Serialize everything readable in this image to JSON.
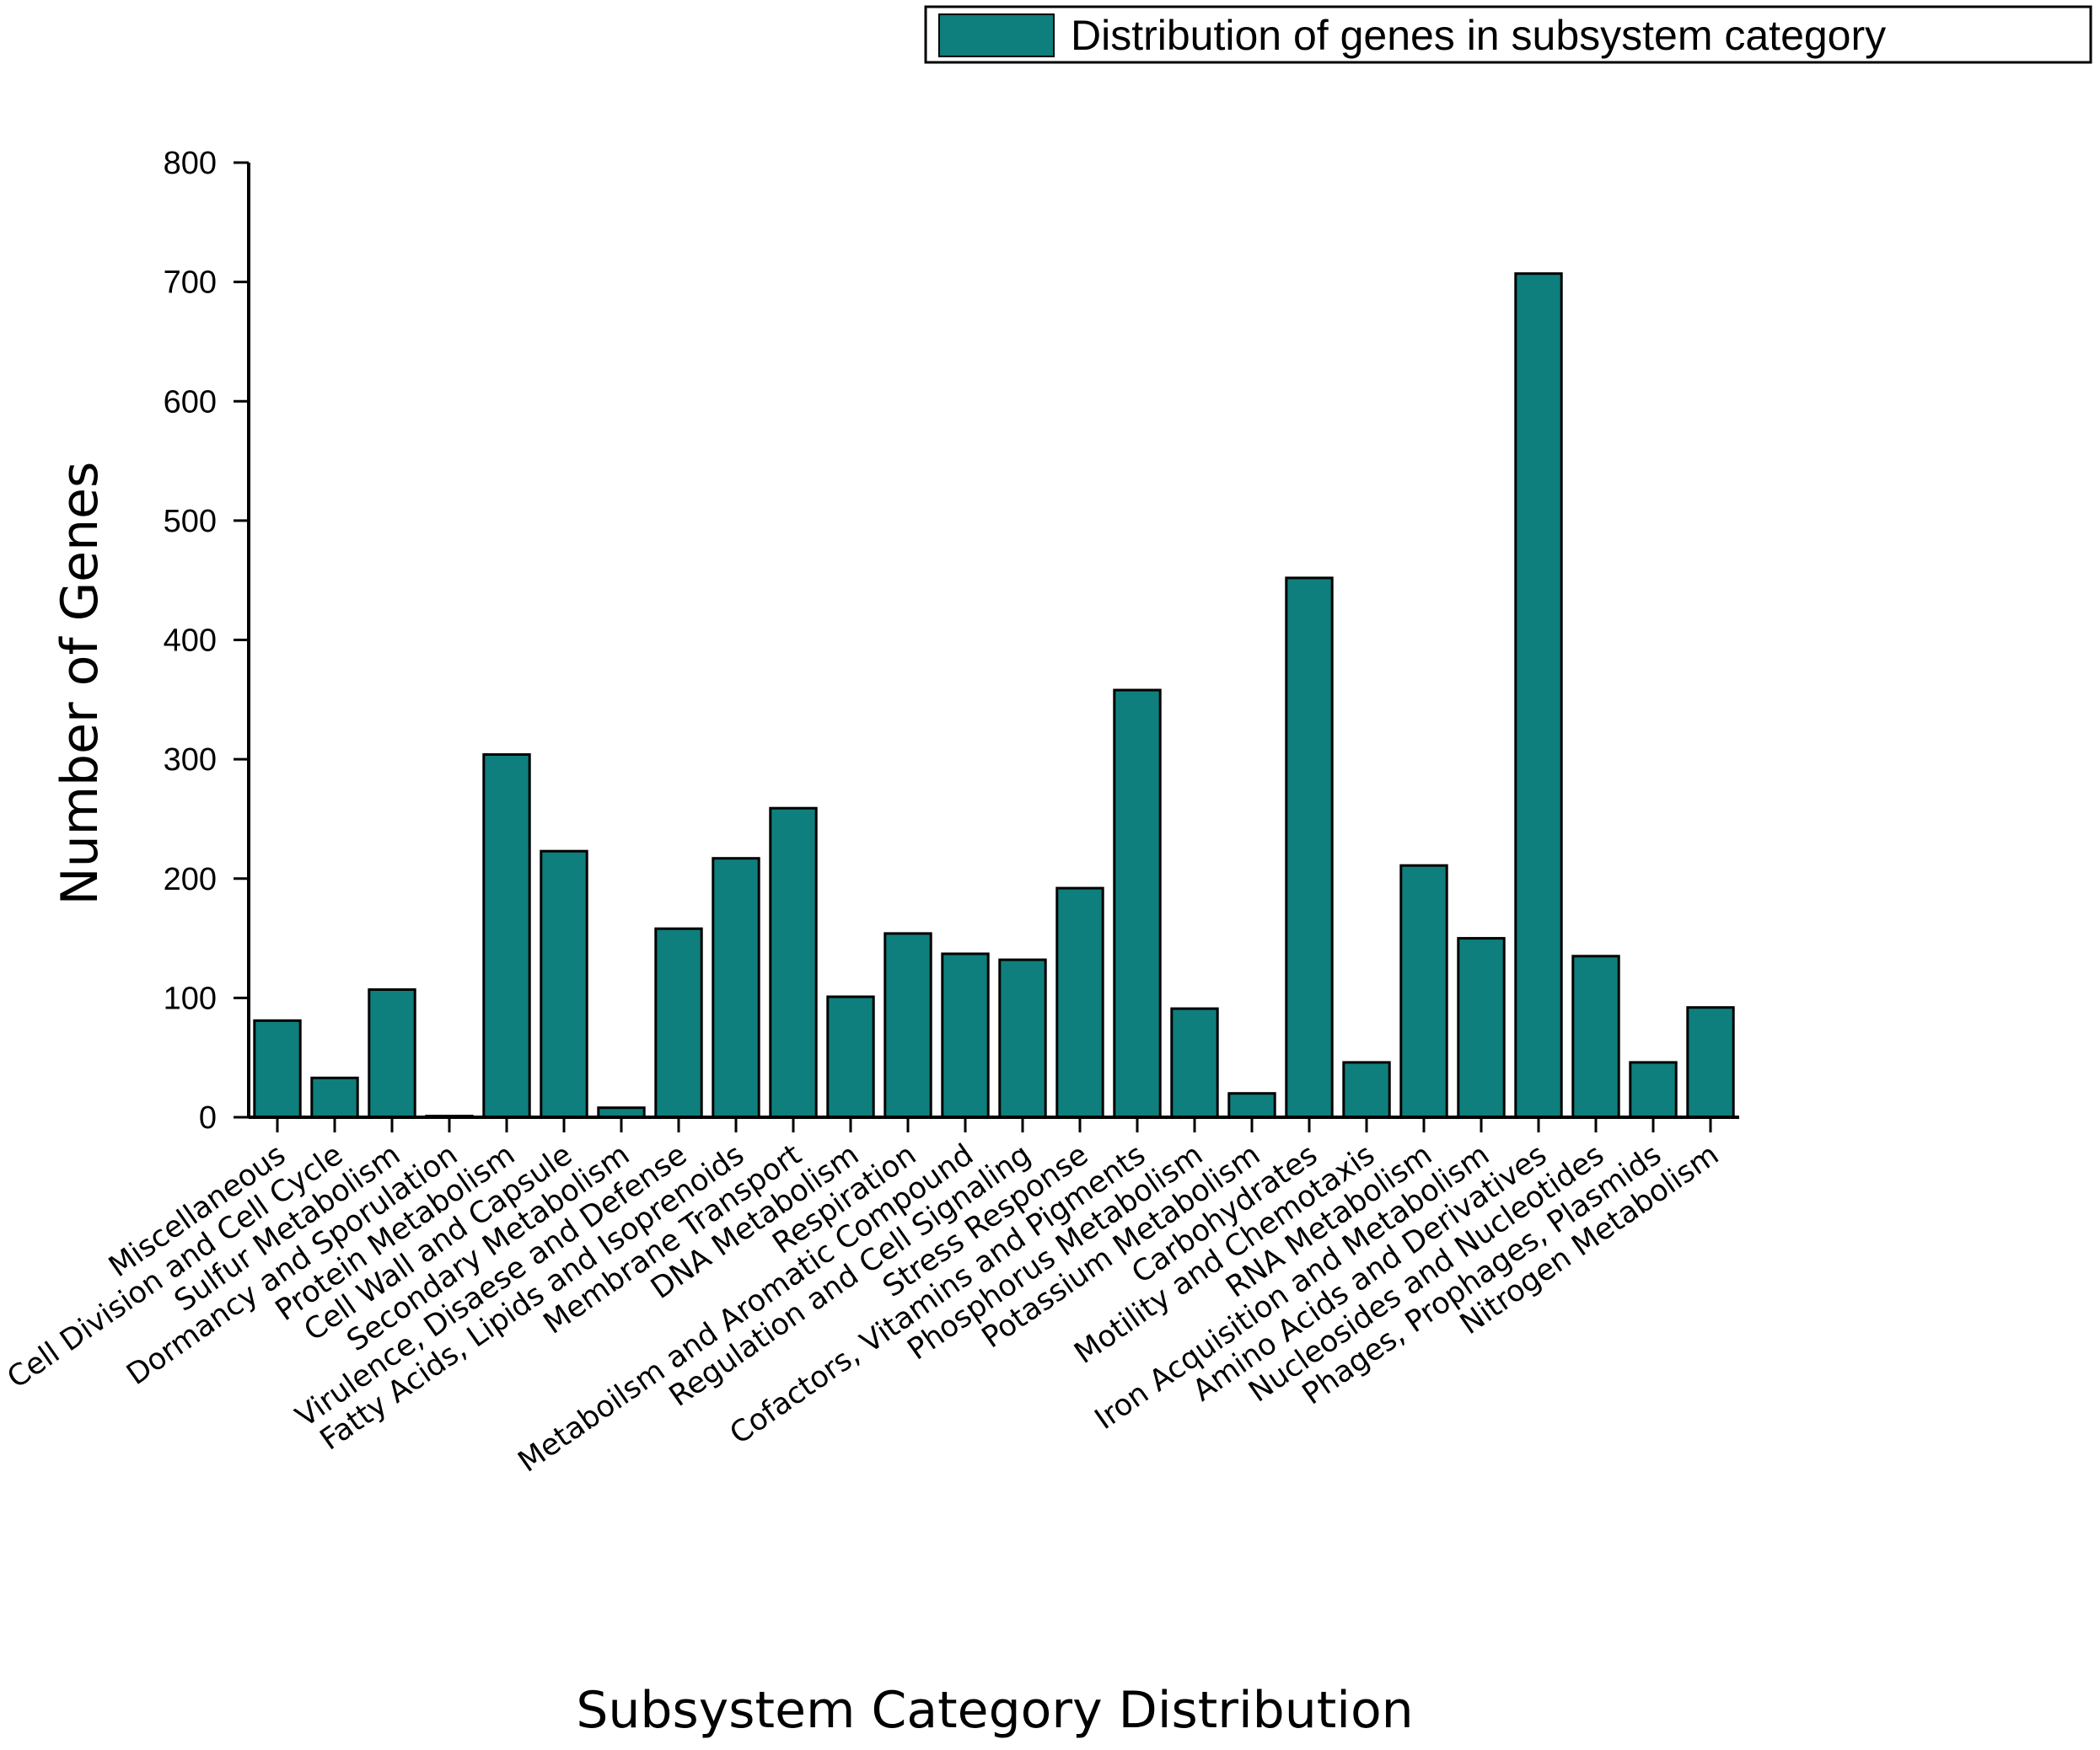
{
  "chart_data": {
    "type": "bar",
    "title": "",
    "xlabel": "Subsystem Category Distribution",
    "ylabel": "Number of Genes",
    "ylim": [
      0,
      800
    ],
    "yticks": [
      0,
      100,
      200,
      300,
      400,
      500,
      600,
      700,
      800
    ],
    "ytick_labels": [
      "0",
      "100",
      "200",
      "300",
      "400",
      "500",
      "600",
      "700",
      "800"
    ],
    "legend": {
      "position": "top-right",
      "entries": [
        "Distribution of genes in subsystem category"
      ]
    },
    "grid": false,
    "bar_color": "#0e7f7c",
    "bar_edge_color": "#000000",
    "categories": [
      "Miscellaneous",
      "Cell Division and Cell Cycle",
      "Sulfur Metabolism",
      "Dormancy and Sporulation",
      "Protein Metabolism",
      "Cell Wall and Capsule",
      "Secondary Metabolism",
      "Virulence, Disaese and Defense",
      "Fatty Acids, Lipids and Isoprenoids",
      "Membrane Transport",
      "DNA Metabolism",
      "Respiration",
      "Metaboilsm and Aromatic Compound",
      "Regulation and Cell Signaling",
      "Stress Response",
      "Cofactors, Vitamins and Pigments",
      "Phosphorus Metabolism",
      "Potassium Metabolism",
      "Carbohydrates",
      "Motility and Chemotaxis",
      "RNA Metabolism",
      "Iron Acquisition and Metabolism",
      "Amino Acids and Derivatives",
      "Nucleosides and Nucleotides",
      "Phages, Prophages, Plasmids",
      "Nitrogen Metabolism"
    ],
    "series": [
      {
        "name": "Distribution of genes in subsystem category",
        "values": [
          81,
          33,
          107,
          1,
          304,
          223,
          8,
          158,
          217,
          259,
          101,
          154,
          137,
          132,
          192,
          358,
          91,
          20,
          452,
          46,
          211,
          150,
          707,
          135,
          46,
          92
        ]
      }
    ]
  }
}
